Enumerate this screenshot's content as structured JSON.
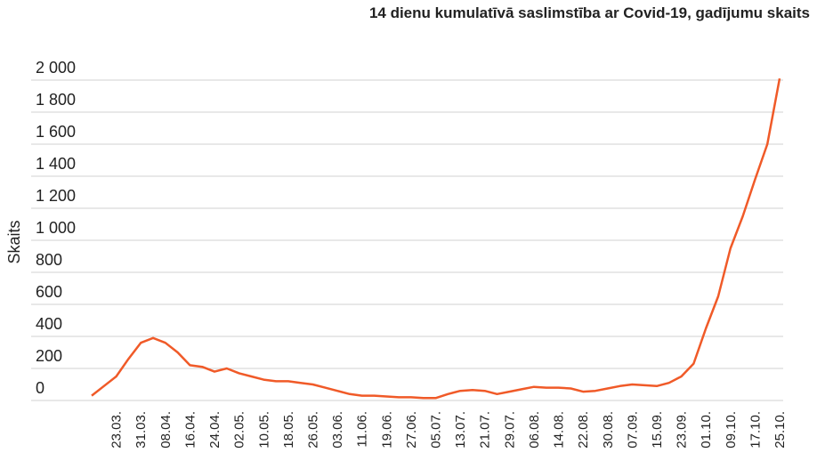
{
  "chart_data": {
    "type": "line",
    "title": "14 dienu kumulatīvā saslimstība ar Covid-19, gadījumu skaits",
    "y_label": "Skaits",
    "categories": [
      null,
      null,
      "23.03.",
      null,
      "31.03.",
      null,
      "08.04.",
      null,
      "16.04.",
      null,
      "24.04.",
      null,
      "02.05.",
      null,
      "10.05.",
      null,
      "18.05.",
      null,
      "26.05.",
      null,
      "03.06.",
      null,
      "11.06.",
      null,
      "19.06.",
      null,
      "27.06.",
      null,
      "05.07.",
      null,
      "13.07.",
      null,
      "21.07.",
      null,
      "29.07.",
      null,
      "06.08.",
      null,
      "14.08.",
      null,
      "22.08.",
      null,
      "30.08.",
      null,
      "07.09.",
      null,
      "15.09.",
      null,
      "23.09.",
      null,
      "01.10.",
      null,
      "09.10.",
      null,
      "17.10.",
      null,
      "25.10."
    ],
    "series": [
      {
        "name": "Skaits",
        "color": "#f05a28",
        "values": [
          30,
          90,
          150,
          260,
          360,
          390,
          360,
          300,
          220,
          210,
          180,
          200,
          170,
          150,
          130,
          120,
          120,
          110,
          100,
          80,
          60,
          40,
          30,
          30,
          25,
          20,
          20,
          15,
          15,
          40,
          60,
          65,
          60,
          40,
          55,
          70,
          85,
          80,
          80,
          75,
          55,
          60,
          75,
          90,
          100,
          95,
          90,
          110,
          150,
          230,
          450,
          650,
          950,
          1150,
          1380,
          1600,
          2010
        ]
      }
    ],
    "ylim": [
      0,
      2000
    ],
    "yticks": [
      {
        "value": 0,
        "label": "0"
      },
      {
        "value": 200,
        "label": "200"
      },
      {
        "value": 400,
        "label": "400"
      },
      {
        "value": 600,
        "label": "600"
      },
      {
        "value": 800,
        "label": "800"
      },
      {
        "value": 1000,
        "label": "1 000"
      },
      {
        "value": 1200,
        "label": "1 200"
      },
      {
        "value": 1400,
        "label": "1 400"
      },
      {
        "value": 1600,
        "label": "1 600"
      },
      {
        "value": 1800,
        "label": "1 800"
      },
      {
        "value": 2000,
        "label": "2 000"
      }
    ],
    "grid": true
  }
}
